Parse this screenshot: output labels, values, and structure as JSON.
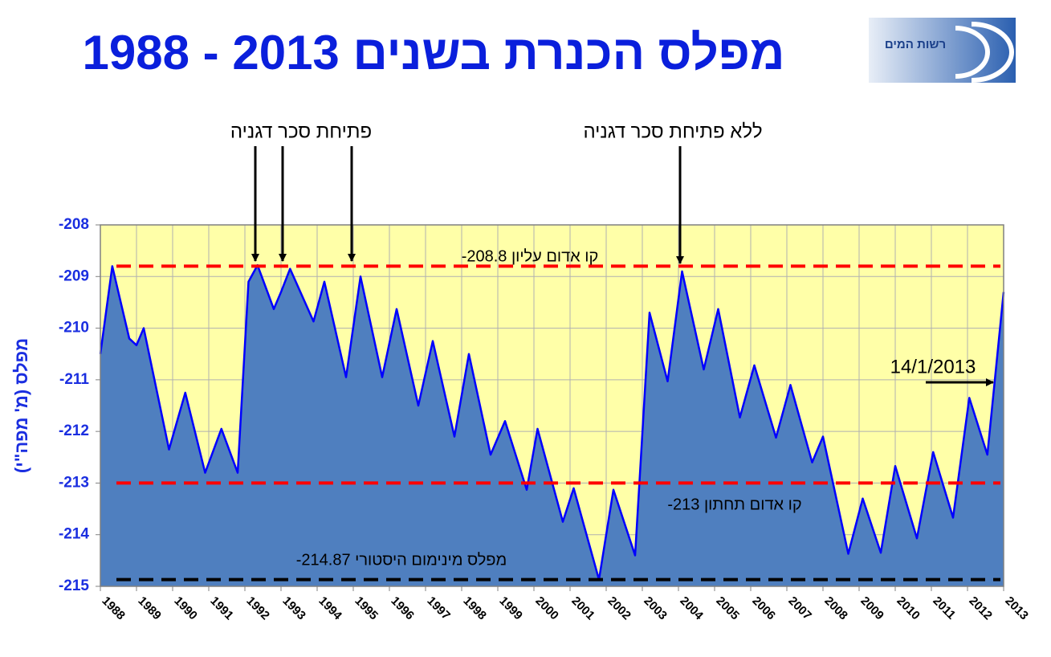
{
  "logo_text": "רשות המים",
  "chart_data": {
    "type": "area",
    "title": "1988 - 2013 מפלס הכנרת בשנים",
    "y_label": "מפלס (מ' מפה\"י)",
    "x": [
      1988.0,
      1988.33,
      1988.8,
      1989.0,
      1989.2,
      1989.9,
      1990.35,
      1990.9,
      1991.35,
      1991.8,
      1992.1,
      1992.35,
      1992.8,
      1993.0,
      1993.25,
      1993.9,
      1994.2,
      1994.8,
      1995.2,
      1995.8,
      1996.2,
      1996.8,
      1997.2,
      1997.8,
      1998.2,
      1998.8,
      1999.2,
      1999.8,
      2000.1,
      2000.8,
      2001.1,
      2001.8,
      2002.2,
      2002.8,
      2003.2,
      2003.7,
      2004.1,
      2004.7,
      2005.1,
      2005.7,
      2006.1,
      2006.7,
      2007.1,
      2007.7,
      2008.0,
      2008.7,
      2009.1,
      2009.6,
      2010.0,
      2010.6,
      2011.05,
      2011.6,
      2012.05,
      2012.55,
      2013.0
    ],
    "values": [
      -210.5,
      -208.8,
      -210.2,
      -210.33,
      -210.0,
      -212.35,
      -211.25,
      -212.8,
      -211.95,
      -212.8,
      -209.1,
      -208.78,
      -209.63,
      -209.3,
      -208.85,
      -209.87,
      -209.1,
      -210.95,
      -209.0,
      -210.95,
      -209.63,
      -211.5,
      -210.25,
      -212.1,
      -210.5,
      -212.45,
      -211.8,
      -213.13,
      -211.95,
      -213.75,
      -213.1,
      -214.87,
      -213.13,
      -214.4,
      -209.7,
      -211.03,
      -208.9,
      -210.8,
      -209.63,
      -211.73,
      -210.72,
      -212.12,
      -211.1,
      -212.6,
      -212.1,
      -214.37,
      -213.3,
      -214.35,
      -212.67,
      -214.07,
      -212.4,
      -213.67,
      -211.35,
      -212.45,
      -209.3
    ],
    "color": "#4f7fbf",
    "line_color": "#0000ff",
    "xlim": [
      1988,
      2013
    ],
    "xticks": [
      1988,
      1989,
      1990,
      1991,
      1992,
      1993,
      1994,
      1995,
      1996,
      1997,
      1998,
      1999,
      2000,
      2001,
      2002,
      2003,
      2004,
      2005,
      2006,
      2007,
      2008,
      2009,
      2010,
      2011,
      2012,
      2013
    ],
    "ylim": [
      -215,
      -208
    ],
    "yticks": [
      -215,
      -214,
      -213,
      -212,
      -211,
      -210,
      -209,
      -208
    ],
    "grid": true,
    "reference_lines": [
      {
        "value": -208.8,
        "label": "-208.8 קו אדום עליון",
        "color": "#ff0000"
      },
      {
        "value": -213,
        "label": "-213 קו אדום תחתון",
        "color": "#ff0000"
      },
      {
        "value": -214.87,
        "label": "-214.87 מפלס מינימום היסטורי",
        "color": "#000000"
      }
    ],
    "annotations": [
      "פתיחת סכר דגניה",
      "ללא פתיחת סכר דגניה",
      "14/1/2013"
    ]
  }
}
